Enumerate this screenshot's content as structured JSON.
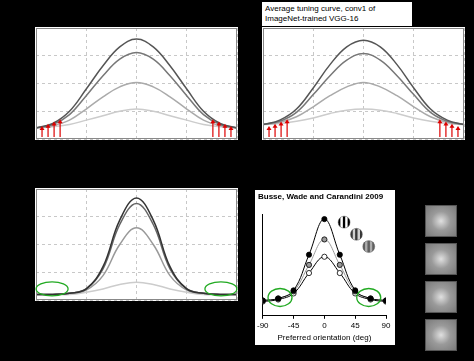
{
  "chart_data": [
    {
      "type": "line",
      "x": [
        -90,
        -75,
        -60,
        -45,
        -30,
        -15,
        0,
        15,
        30,
        45,
        60,
        75,
        90
      ],
      "series": [
        {
          "color": "#555555",
          "values": [
            0.1,
            0.14,
            0.25,
            0.45,
            0.66,
            0.83,
            0.9,
            0.83,
            0.66,
            0.45,
            0.25,
            0.14,
            0.1
          ]
        },
        {
          "color": "#777777",
          "values": [
            0.1,
            0.13,
            0.22,
            0.39,
            0.57,
            0.72,
            0.78,
            0.72,
            0.57,
            0.39,
            0.22,
            0.13,
            0.1
          ]
        },
        {
          "color": "#aaaaaa",
          "values": [
            0.1,
            0.12,
            0.17,
            0.27,
            0.38,
            0.47,
            0.51,
            0.47,
            0.38,
            0.27,
            0.17,
            0.12,
            0.1
          ]
        },
        {
          "color": "#cccccc",
          "values": [
            0.1,
            0.11,
            0.13,
            0.17,
            0.21,
            0.25,
            0.27,
            0.25,
            0.21,
            0.17,
            0.13,
            0.11,
            0.1
          ]
        }
      ],
      "xlim": [
        -90,
        90
      ],
      "xticks": [
        -90,
        -45,
        0,
        45,
        90
      ],
      "ylim": [
        0,
        1
      ],
      "yticks": [
        0,
        0.25,
        0.5,
        0.75,
        1
      ],
      "grid": true,
      "tick_labels": false,
      "line_style": "solid"
    },
    {
      "type": "line",
      "title": "Average tuning curve, conv1 of ImageNet-trained VGG-16",
      "x": [
        -90,
        -75,
        -60,
        -45,
        -30,
        -15,
        0,
        15,
        30,
        45,
        60,
        75,
        90
      ],
      "series": [
        {
          "color": "#555555",
          "values": [
            0.13,
            0.17,
            0.27,
            0.46,
            0.67,
            0.83,
            0.89,
            0.83,
            0.67,
            0.46,
            0.27,
            0.17,
            0.13
          ]
        },
        {
          "color": "#777777",
          "values": [
            0.13,
            0.16,
            0.24,
            0.4,
            0.57,
            0.71,
            0.77,
            0.71,
            0.57,
            0.4,
            0.24,
            0.16,
            0.13
          ]
        },
        {
          "color": "#aaaaaa",
          "values": [
            0.13,
            0.15,
            0.2,
            0.29,
            0.39,
            0.47,
            0.51,
            0.47,
            0.39,
            0.29,
            0.2,
            0.15,
            0.13
          ]
        },
        {
          "color": "#cccccc",
          "values": [
            0.13,
            0.14,
            0.16,
            0.19,
            0.23,
            0.26,
            0.27,
            0.26,
            0.23,
            0.19,
            0.16,
            0.14,
            0.13
          ]
        }
      ],
      "xlim": [
        -90,
        90
      ],
      "xticks": [
        -90,
        -45,
        0,
        45,
        90
      ],
      "ylim": [
        0,
        1
      ],
      "yticks": [
        0,
        0.25,
        0.5,
        0.75,
        1
      ],
      "grid": true,
      "tick_labels": false,
      "line_style": "solid"
    },
    {
      "type": "line",
      "x": [
        -90,
        -75,
        -60,
        -45,
        -30,
        -15,
        0,
        15,
        30,
        45,
        60,
        75,
        90
      ],
      "series": [
        {
          "color": "#333333",
          "values": [
            0.05,
            0.05,
            0.06,
            0.1,
            0.3,
            0.72,
            0.92,
            0.72,
            0.3,
            0.1,
            0.06,
            0.05,
            0.05
          ]
        },
        {
          "color": "#666666",
          "values": [
            0.05,
            0.05,
            0.06,
            0.1,
            0.28,
            0.68,
            0.87,
            0.68,
            0.28,
            0.1,
            0.06,
            0.05,
            0.05
          ]
        },
        {
          "color": "#999999",
          "values": [
            0.05,
            0.05,
            0.06,
            0.09,
            0.22,
            0.5,
            0.65,
            0.5,
            0.22,
            0.09,
            0.06,
            0.05,
            0.05
          ]
        },
        {
          "color": "#cccccc",
          "values": [
            0.05,
            0.05,
            0.05,
            0.07,
            0.1,
            0.14,
            0.16,
            0.14,
            0.1,
            0.07,
            0.05,
            0.05,
            0.05
          ]
        }
      ],
      "xlim": [
        -90,
        90
      ],
      "xticks": [
        -90,
        -45,
        0,
        45,
        90
      ],
      "ylim": [
        0,
        1
      ],
      "yticks": [
        0,
        0.25,
        0.5,
        0.75,
        1
      ],
      "grid": true,
      "tick_labels": false,
      "line_style": "solid"
    },
    {
      "type": "line",
      "annotations": [
        "Busse, Wade and Carandini 2009"
      ],
      "xlabel": "Preferred orientation (deg)",
      "x": [
        -90,
        -67.5,
        -45,
        -22.5,
        0,
        22.5,
        45,
        67.5,
        90
      ],
      "series": [
        {
          "color": "#000000",
          "marker": "circle",
          "values": [
            0.15,
            0.17,
            0.25,
            0.6,
            0.95,
            0.6,
            0.25,
            0.17,
            0.15
          ]
        },
        {
          "color": "#9a9a9a",
          "marker": "circle",
          "values": [
            0.15,
            0.17,
            0.24,
            0.5,
            0.75,
            0.5,
            0.24,
            0.17,
            0.15
          ]
        },
        {
          "color": "#ffffff",
          "marker": "open_circle",
          "values": [
            0.14,
            0.16,
            0.22,
            0.42,
            0.58,
            0.42,
            0.22,
            0.16,
            0.14
          ]
        }
      ],
      "xlim": [
        -90,
        90
      ],
      "xticks": [
        -90,
        -45,
        0,
        45,
        90
      ],
      "ylim": [
        0,
        1
      ],
      "grid": false,
      "tick_labels": "x",
      "line_style": "solid"
    }
  ]
}
